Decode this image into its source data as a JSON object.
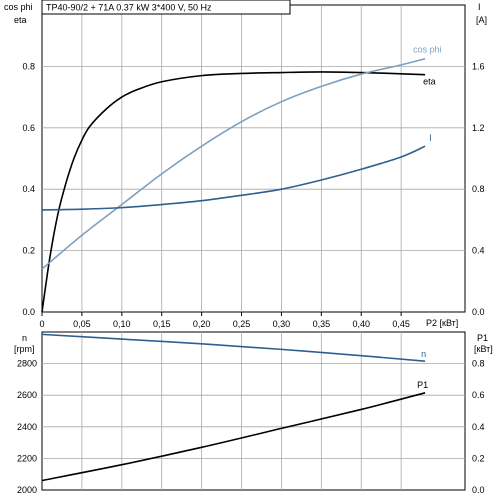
{
  "title": "TP40-90/2 + 71A   0.37 kW   3*400 V, 50 Hz",
  "colors": {
    "eta": "#000000",
    "cosphi": "#7f9fbf",
    "I": "#2f5f8f",
    "n": "#2f5f8f",
    "P1": "#000000",
    "grid": "#a8a8a8"
  },
  "chart_data": [
    {
      "type": "line",
      "xlabel": "P2 [кВт]",
      "ylabel_left": [
        "cos phi",
        "eta"
      ],
      "ylabel_right": [
        "I",
        "[A]"
      ],
      "xlim": [
        0,
        0.53
      ],
      "ylim_left": [
        0,
        1.0
      ],
      "ylim_right": [
        0,
        2.0
      ],
      "xticks": [
        "0",
        "0,05",
        "0,10",
        "0,15",
        "0,20",
        "0,25",
        "0,30",
        "0,35",
        "0,40",
        "0,45"
      ],
      "yticks_left": [
        "0.0",
        "0.2",
        "0.4",
        "0.6",
        "0.8"
      ],
      "yticks_right": [
        "0.0",
        "0.4",
        "0.8",
        "1.2",
        "1.6"
      ],
      "grid": true,
      "series": [
        {
          "name": "eta",
          "axis": "left",
          "x": [
            0,
            0.01,
            0.02,
            0.03,
            0.04,
            0.05,
            0.06,
            0.08,
            0.1,
            0.12,
            0.15,
            0.2,
            0.25,
            0.3,
            0.35,
            0.4,
            0.45,
            0.48
          ],
          "y": [
            0,
            0.18,
            0.32,
            0.42,
            0.5,
            0.56,
            0.605,
            0.66,
            0.7,
            0.725,
            0.75,
            0.77,
            0.777,
            0.78,
            0.782,
            0.78,
            0.776,
            0.773
          ]
        },
        {
          "name": "cos phi",
          "axis": "left",
          "x": [
            0,
            0.05,
            0.1,
            0.15,
            0.2,
            0.25,
            0.3,
            0.35,
            0.4,
            0.45,
            0.48
          ],
          "y": [
            0.14,
            0.25,
            0.35,
            0.45,
            0.54,
            0.62,
            0.685,
            0.735,
            0.775,
            0.805,
            0.825
          ]
        },
        {
          "name": "I",
          "axis": "right",
          "x": [
            0,
            0.05,
            0.1,
            0.15,
            0.2,
            0.25,
            0.3,
            0.35,
            0.4,
            0.45,
            0.48
          ],
          "y": [
            0.665,
            0.67,
            0.68,
            0.7,
            0.725,
            0.76,
            0.8,
            0.86,
            0.93,
            1.01,
            1.08
          ]
        }
      ]
    },
    {
      "type": "line",
      "xlim": [
        0,
        0.53
      ],
      "ylabel_left": [
        "n",
        "[rpm]"
      ],
      "ylabel_right": [
        "P1",
        "[кВт]"
      ],
      "ylim_left": [
        2000,
        3000
      ],
      "ylim_right": [
        0,
        1.0
      ],
      "yticks_left": [
        "2000",
        "2200",
        "2400",
        "2600",
        "2800"
      ],
      "yticks_right": [
        "0.0",
        "0.2",
        "0.4",
        "0.6",
        "0.8"
      ],
      "grid": true,
      "series": [
        {
          "name": "n",
          "axis": "left",
          "x": [
            0,
            0.1,
            0.2,
            0.3,
            0.4,
            0.48
          ],
          "y": [
            2985,
            2955,
            2925,
            2890,
            2850,
            2815
          ]
        },
        {
          "name": "P1",
          "axis": "right",
          "x": [
            0,
            0.1,
            0.2,
            0.3,
            0.4,
            0.48
          ],
          "y": [
            0.06,
            0.16,
            0.27,
            0.39,
            0.51,
            0.615
          ]
        }
      ]
    }
  ]
}
